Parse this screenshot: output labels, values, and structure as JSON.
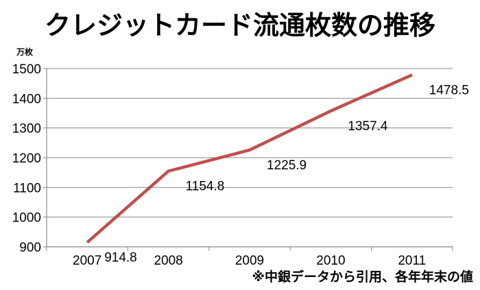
{
  "chart_data": {
    "type": "line",
    "title": "クレジットカード流通枚数の推移",
    "ylabel": "万枚",
    "xlabel": "",
    "categories": [
      "2007",
      "2008",
      "2009",
      "2010",
      "2011"
    ],
    "series": [
      {
        "values": [
          914.8,
          1154.8,
          1225.9,
          1357.4,
          1478.5
        ],
        "labels": [
          "914.8",
          "1154.8",
          "1225.9",
          "1357.4",
          "1478.5"
        ],
        "color": "#c0504d"
      }
    ],
    "ylim": [
      900,
      1500
    ],
    "yticks": [
      "900",
      "1000",
      "1100",
      "1200",
      "1300",
      "1400",
      "1500"
    ],
    "grid": true,
    "legend": "none",
    "note": "※中銀データから引用、各年年末の値"
  }
}
